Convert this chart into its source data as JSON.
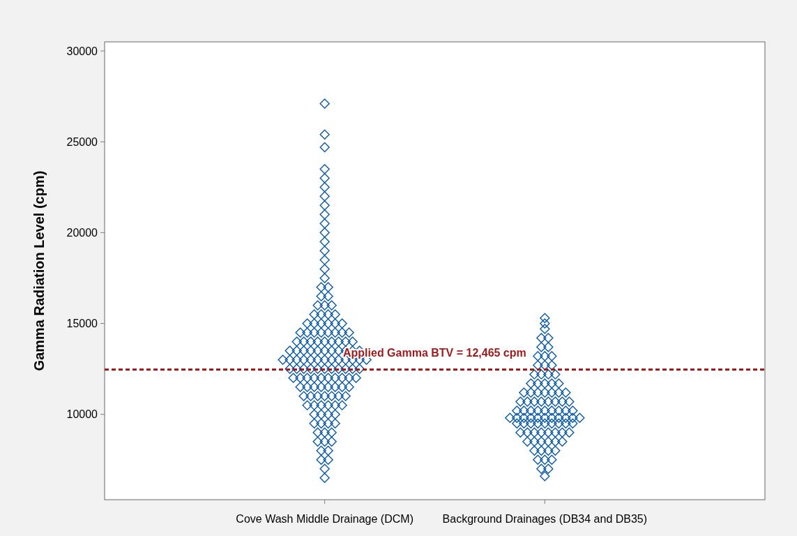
{
  "chart_data": {
    "type": "scatter",
    "ylabel": "Gamma Radiation Level (cpm)",
    "categories": [
      "Cove Wash Middle Drainage (DCM)",
      "Background Drainages (DB34 and DB35)"
    ],
    "ylim": [
      5300,
      30500
    ],
    "yticks": [
      10000,
      15000,
      20000,
      25000,
      30000
    ],
    "marker": "diamond",
    "grid": false,
    "ref_lines": [
      {
        "axis": "y",
        "value": 12465,
        "label": "Applied Gamma BTV = 12,465 cpm",
        "color": "#a01c1c",
        "line_style": "dashed"
      }
    ],
    "series": [
      {
        "color": "#0b5aa8",
        "x": [
          "Cove Wash Middle Drainage (DCM)",
          "Cove Wash Middle Drainage (DCM)",
          "Cove Wash Middle Drainage (DCM)",
          "Cove Wash Middle Drainage (DCM)",
          "Cove Wash Middle Drainage (DCM)",
          "Cove Wash Middle Drainage (DCM)",
          "Cove Wash Middle Drainage (DCM)",
          "Cove Wash Middle Drainage (DCM)",
          "Cove Wash Middle Drainage (DCM)",
          "Cove Wash Middle Drainage (DCM)",
          "Cove Wash Middle Drainage (DCM)",
          "Cove Wash Middle Drainage (DCM)",
          "Cove Wash Middle Drainage (DCM)",
          "Cove Wash Middle Drainage (DCM)",
          "Cove Wash Middle Drainage (DCM)",
          "Cove Wash Middle Drainage (DCM)",
          "Cove Wash Middle Drainage (DCM)",
          "Cove Wash Middle Drainage (DCM)",
          "Cove Wash Middle Drainage (DCM)",
          "Cove Wash Middle Drainage (DCM)",
          "Cove Wash Middle Drainage (DCM)",
          "Cove Wash Middle Drainage (DCM)",
          "Cove Wash Middle Drainage (DCM)",
          "Cove Wash Middle Drainage (DCM)",
          "Cove Wash Middle Drainage (DCM)",
          "Cove Wash Middle Drainage (DCM)",
          "Cove Wash Middle Drainage (DCM)",
          "Cove Wash Middle Drainage (DCM)",
          "Cove Wash Middle Drainage (DCM)",
          "Cove Wash Middle Drainage (DCM)",
          "Cove Wash Middle Drainage (DCM)",
          "Cove Wash Middle Drainage (DCM)",
          "Cove Wash Middle Drainage (DCM)",
          "Cove Wash Middle Drainage (DCM)",
          "Cove Wash Middle Drainage (DCM)",
          "Cove Wash Middle Drainage (DCM)",
          "Cove Wash Middle Drainage (DCM)",
          "Cove Wash Middle Drainage (DCM)",
          "Cove Wash Middle Drainage (DCM)",
          "Cove Wash Middle Drainage (DCM)",
          "Cove Wash Middle Drainage (DCM)",
          "Cove Wash Middle Drainage (DCM)",
          "Cove Wash Middle Drainage (DCM)",
          "Cove Wash Middle Drainage (DCM)",
          "Cove Wash Middle Drainage (DCM)",
          "Cove Wash Middle Drainage (DCM)",
          "Cove Wash Middle Drainage (DCM)",
          "Cove Wash Middle Drainage (DCM)",
          "Cove Wash Middle Drainage (DCM)",
          "Cove Wash Middle Drainage (DCM)",
          "Cove Wash Middle Drainage (DCM)",
          "Cove Wash Middle Drainage (DCM)",
          "Cove Wash Middle Drainage (DCM)",
          "Cove Wash Middle Drainage (DCM)",
          "Cove Wash Middle Drainage (DCM)",
          "Cove Wash Middle Drainage (DCM)",
          "Cove Wash Middle Drainage (DCM)",
          "Cove Wash Middle Drainage (DCM)",
          "Cove Wash Middle Drainage (DCM)",
          "Cove Wash Middle Drainage (DCM)",
          "Cove Wash Middle Drainage (DCM)",
          "Cove Wash Middle Drainage (DCM)",
          "Cove Wash Middle Drainage (DCM)",
          "Cove Wash Middle Drainage (DCM)",
          "Cove Wash Middle Drainage (DCM)",
          "Cove Wash Middle Drainage (DCM)",
          "Cove Wash Middle Drainage (DCM)",
          "Cove Wash Middle Drainage (DCM)",
          "Cove Wash Middle Drainage (DCM)",
          "Cove Wash Middle Drainage (DCM)",
          "Cove Wash Middle Drainage (DCM)",
          "Cove Wash Middle Drainage (DCM)",
          "Cove Wash Middle Drainage (DCM)",
          "Cove Wash Middle Drainage (DCM)",
          "Cove Wash Middle Drainage (DCM)",
          "Cove Wash Middle Drainage (DCM)",
          "Cove Wash Middle Drainage (DCM)",
          "Cove Wash Middle Drainage (DCM)",
          "Cove Wash Middle Drainage (DCM)",
          "Cove Wash Middle Drainage (DCM)",
          "Cove Wash Middle Drainage (DCM)",
          "Cove Wash Middle Drainage (DCM)",
          "Cove Wash Middle Drainage (DCM)",
          "Cove Wash Middle Drainage (DCM)",
          "Cove Wash Middle Drainage (DCM)",
          "Cove Wash Middle Drainage (DCM)",
          "Cove Wash Middle Drainage (DCM)",
          "Cove Wash Middle Drainage (DCM)",
          "Cove Wash Middle Drainage (DCM)",
          "Cove Wash Middle Drainage (DCM)",
          "Cove Wash Middle Drainage (DCM)",
          "Cove Wash Middle Drainage (DCM)",
          "Cove Wash Middle Drainage (DCM)",
          "Cove Wash Middle Drainage (DCM)",
          "Cove Wash Middle Drainage (DCM)",
          "Cove Wash Middle Drainage (DCM)",
          "Cove Wash Middle Drainage (DCM)",
          "Cove Wash Middle Drainage (DCM)",
          "Cove Wash Middle Drainage (DCM)",
          "Cove Wash Middle Drainage (DCM)",
          "Cove Wash Middle Drainage (DCM)",
          "Cove Wash Middle Drainage (DCM)",
          "Cove Wash Middle Drainage (DCM)",
          "Cove Wash Middle Drainage (DCM)",
          "Cove Wash Middle Drainage (DCM)",
          "Cove Wash Middle Drainage (DCM)",
          "Cove Wash Middle Drainage (DCM)",
          "Cove Wash Middle Drainage (DCM)",
          "Cove Wash Middle Drainage (DCM)",
          "Cove Wash Middle Drainage (DCM)",
          "Cove Wash Middle Drainage (DCM)",
          "Cove Wash Middle Drainage (DCM)",
          "Cove Wash Middle Drainage (DCM)",
          "Cove Wash Middle Drainage (DCM)",
          "Cove Wash Middle Drainage (DCM)",
          "Cove Wash Middle Drainage (DCM)",
          "Cove Wash Middle Drainage (DCM)",
          "Cove Wash Middle Drainage (DCM)",
          "Cove Wash Middle Drainage (DCM)",
          "Cove Wash Middle Drainage (DCM)",
          "Cove Wash Middle Drainage (DCM)",
          "Cove Wash Middle Drainage (DCM)",
          "Cove Wash Middle Drainage (DCM)",
          "Cove Wash Middle Drainage (DCM)",
          "Cove Wash Middle Drainage (DCM)",
          "Cove Wash Middle Drainage (DCM)",
          "Cove Wash Middle Drainage (DCM)",
          "Cove Wash Middle Drainage (DCM)",
          "Cove Wash Middle Drainage (DCM)",
          "Cove Wash Middle Drainage (DCM)",
          "Cove Wash Middle Drainage (DCM)",
          "Cove Wash Middle Drainage (DCM)",
          "Cove Wash Middle Drainage (DCM)",
          "Cove Wash Middle Drainage (DCM)",
          "Cove Wash Middle Drainage (DCM)",
          "Cove Wash Middle Drainage (DCM)"
        ],
        "values": [
          6500,
          7000,
          7500,
          7500,
          8000,
          8000,
          8500,
          8500,
          8500,
          9000,
          9000,
          9000,
          9500,
          9500,
          9500,
          9500,
          10000,
          10000,
          10000,
          10000,
          10500,
          10500,
          10500,
          10500,
          10500,
          10500,
          11000,
          11000,
          11000,
          11000,
          11000,
          11000,
          11000,
          11500,
          11500,
          11500,
          11500,
          11500,
          11500,
          11500,
          11500,
          12000,
          12000,
          12000,
          12000,
          12000,
          12000,
          12000,
          12000,
          12000,
          12000,
          12500,
          12500,
          12500,
          12500,
          12500,
          12500,
          12500,
          12500,
          12500,
          12500,
          12500,
          13000,
          13000,
          13000,
          13000,
          13000,
          13000,
          13000,
          13000,
          13000,
          13000,
          13000,
          13000,
          13000,
          13500,
          13500,
          13500,
          13500,
          13500,
          13500,
          13500,
          13500,
          13500,
          13500,
          13500,
          14000,
          14000,
          14000,
          14000,
          14000,
          14000,
          14000,
          14000,
          14000,
          14500,
          14500,
          14500,
          14500,
          14500,
          14500,
          14500,
          14500,
          15000,
          15000,
          15000,
          15000,
          15000,
          15000,
          15500,
          15500,
          15500,
          15500,
          16000,
          16000,
          16000,
          16500,
          16500,
          17000,
          17000,
          17500,
          18000,
          18500,
          19000,
          19500,
          20000,
          20500,
          21000,
          21500,
          22000,
          22500,
          23000,
          23500,
          24700,
          25400,
          27100
        ]
      },
      {
        "color": "#0b5aa8",
        "x": [
          "Background Drainages (DB34 and DB35)",
          "Background Drainages (DB34 and DB35)",
          "Background Drainages (DB34 and DB35)",
          "Background Drainages (DB34 and DB35)",
          "Background Drainages (DB34 and DB35)",
          "Background Drainages (DB34 and DB35)",
          "Background Drainages (DB34 and DB35)",
          "Background Drainages (DB34 and DB35)",
          "Background Drainages (DB34 and DB35)",
          "Background Drainages (DB34 and DB35)",
          "Background Drainages (DB34 and DB35)",
          "Background Drainages (DB34 and DB35)",
          "Background Drainages (DB34 and DB35)",
          "Background Drainages (DB34 and DB35)",
          "Background Drainages (DB34 and DB35)",
          "Background Drainages (DB34 and DB35)",
          "Background Drainages (DB34 and DB35)",
          "Background Drainages (DB34 and DB35)",
          "Background Drainages (DB34 and DB35)",
          "Background Drainages (DB34 and DB35)",
          "Background Drainages (DB34 and DB35)",
          "Background Drainages (DB34 and DB35)",
          "Background Drainages (DB34 and DB35)",
          "Background Drainages (DB34 and DB35)",
          "Background Drainages (DB34 and DB35)",
          "Background Drainages (DB34 and DB35)",
          "Background Drainages (DB34 and DB35)",
          "Background Drainages (DB34 and DB35)",
          "Background Drainages (DB34 and DB35)",
          "Background Drainages (DB34 and DB35)",
          "Background Drainages (DB34 and DB35)",
          "Background Drainages (DB34 and DB35)",
          "Background Drainages (DB34 and DB35)",
          "Background Drainages (DB34 and DB35)",
          "Background Drainages (DB34 and DB35)",
          "Background Drainages (DB34 and DB35)",
          "Background Drainages (DB34 and DB35)",
          "Background Drainages (DB34 and DB35)",
          "Background Drainages (DB34 and DB35)",
          "Background Drainages (DB34 and DB35)",
          "Background Drainages (DB34 and DB35)",
          "Background Drainages (DB34 and DB35)",
          "Background Drainages (DB34 and DB35)",
          "Background Drainages (DB34 and DB35)",
          "Background Drainages (DB34 and DB35)",
          "Background Drainages (DB34 and DB35)",
          "Background Drainages (DB34 and DB35)",
          "Background Drainages (DB34 and DB35)",
          "Background Drainages (DB34 and DB35)",
          "Background Drainages (DB34 and DB35)",
          "Background Drainages (DB34 and DB35)",
          "Background Drainages (DB34 and DB35)",
          "Background Drainages (DB34 and DB35)",
          "Background Drainages (DB34 and DB35)",
          "Background Drainages (DB34 and DB35)",
          "Background Drainages (DB34 and DB35)",
          "Background Drainages (DB34 and DB35)",
          "Background Drainages (DB34 and DB35)",
          "Background Drainages (DB34 and DB35)",
          "Background Drainages (DB34 and DB35)",
          "Background Drainages (DB34 and DB35)",
          "Background Drainages (DB34 and DB35)",
          "Background Drainages (DB34 and DB35)",
          "Background Drainages (DB34 and DB35)",
          "Background Drainages (DB34 and DB35)",
          "Background Drainages (DB34 and DB35)",
          "Background Drainages (DB34 and DB35)",
          "Background Drainages (DB34 and DB35)",
          "Background Drainages (DB34 and DB35)",
          "Background Drainages (DB34 and DB35)",
          "Background Drainages (DB34 and DB35)",
          "Background Drainages (DB34 and DB35)",
          "Background Drainages (DB34 and DB35)",
          "Background Drainages (DB34 and DB35)",
          "Background Drainages (DB34 and DB35)",
          "Background Drainages (DB34 and DB35)",
          "Background Drainages (DB34 and DB35)",
          "Background Drainages (DB34 and DB35)",
          "Background Drainages (DB34 and DB35)",
          "Background Drainages (DB34 and DB35)",
          "Background Drainages (DB34 and DB35)",
          "Background Drainages (DB34 and DB35)",
          "Background Drainages (DB34 and DB35)",
          "Background Drainages (DB34 and DB35)",
          "Background Drainages (DB34 and DB35)",
          "Background Drainages (DB34 and DB35)",
          "Background Drainages (DB34 and DB35)",
          "Background Drainages (DB34 and DB35)",
          "Background Drainages (DB34 and DB35)",
          "Background Drainages (DB34 and DB35)"
        ],
        "values": [
          6600,
          7000,
          7000,
          7500,
          7500,
          7500,
          8000,
          8000,
          8000,
          8000,
          8500,
          8500,
          8500,
          8500,
          8500,
          8500,
          9000,
          9000,
          9000,
          9000,
          9000,
          9000,
          9000,
          9000,
          9500,
          9500,
          9500,
          9500,
          9500,
          9500,
          9500,
          9500,
          9500,
          9800,
          9800,
          9800,
          9800,
          9800,
          9800,
          9800,
          9800,
          9800,
          9800,
          9800,
          10200,
          10200,
          10200,
          10200,
          10200,
          10200,
          10200,
          10200,
          10200,
          10700,
          10700,
          10700,
          10700,
          10700,
          10700,
          10700,
          10700,
          11200,
          11200,
          11200,
          11200,
          11200,
          11200,
          11200,
          11700,
          11700,
          11700,
          11700,
          11700,
          12200,
          12200,
          12200,
          12200,
          12700,
          12700,
          12700,
          13200,
          13200,
          13200,
          13700,
          13700,
          14200,
          14200,
          14700,
          15000,
          15300
        ]
      }
    ]
  }
}
